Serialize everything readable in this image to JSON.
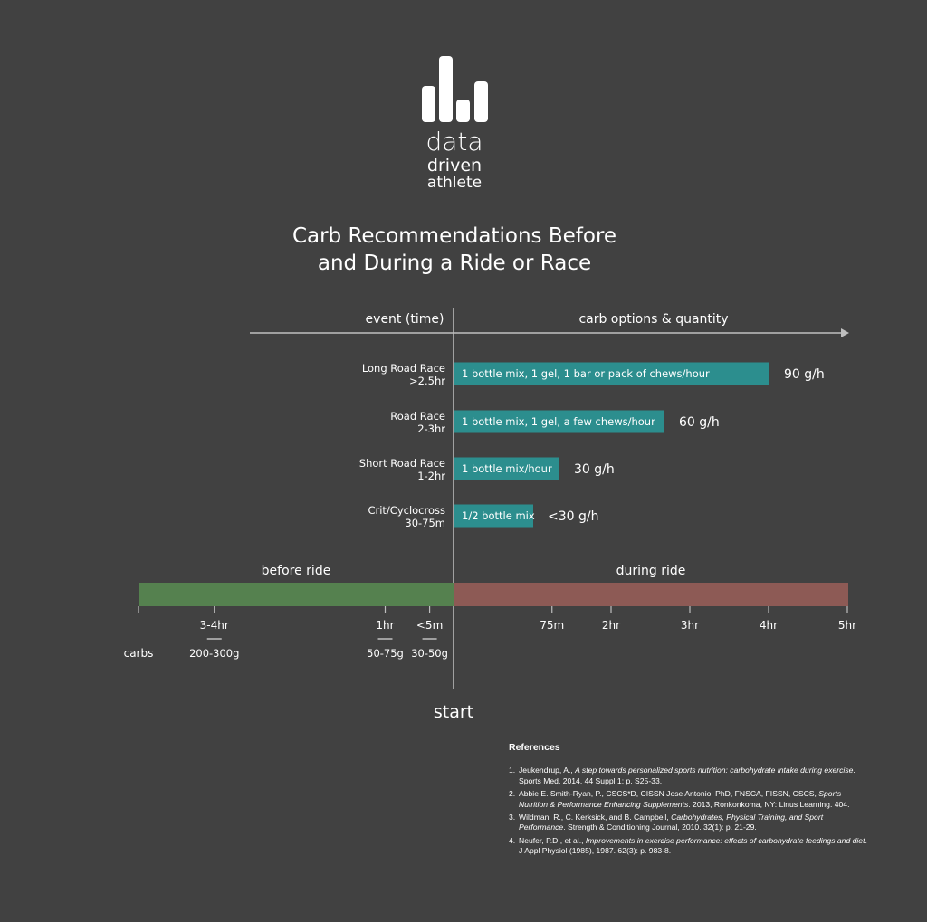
{
  "logo": {
    "lines": [
      "data",
      "driven",
      "athlete"
    ]
  },
  "title": {
    "line1": "Carb Recommendations Before",
    "line2": "and During a Ride or Race"
  },
  "headers": {
    "left": "event (time)",
    "right": "carb options & quantity"
  },
  "chart_data": {
    "type": "bar",
    "orientation": "horizontal",
    "xlabel": "carb options & quantity",
    "ylabel": "event (time)",
    "unit": "g/h",
    "categories": [
      {
        "name": "Long Road Race",
        "duration": ">2.5hr"
      },
      {
        "name": "Road Race",
        "duration": "2-3hr"
      },
      {
        "name": "Short Road Race",
        "duration": "1-2hr"
      },
      {
        "name": "Crit/Cyclocross",
        "duration": "30-75m"
      }
    ],
    "values": [
      90,
      60,
      30,
      22.5
    ],
    "value_labels": [
      "90 g/h",
      "60 g/h",
      "30 g/h",
      "<30 g/h"
    ],
    "bar_texts": [
      "1 bottle mix, 1 gel, 1 bar or pack of chews/hour",
      "1 bottle mix, 1 gel, a few chews/hour",
      "1 bottle mix/hour",
      "1/2 bottle mix"
    ],
    "xlim": [
      0,
      120
    ],
    "bar_color": "#2c8e8e"
  },
  "timeline": {
    "before_label": "before ride",
    "during_label": "during ride",
    "before_color": "#55814f",
    "during_color": "#8d5a55",
    "before_ticks": [
      {
        "label": "3-4hr",
        "carbs": "200-300g",
        "hours_before": 3.5
      },
      {
        "label": "1hr",
        "carbs": "50-75g",
        "hours_before": 1
      },
      {
        "label": "<5m",
        "carbs": "30-50g",
        "hours_before": 0.35
      }
    ],
    "during_ticks": [
      {
        "label": "75m",
        "hours": 1.25
      },
      {
        "label": "2hr",
        "hours": 2
      },
      {
        "label": "3hr",
        "hours": 3
      },
      {
        "label": "4hr",
        "hours": 4
      },
      {
        "label": "5hr",
        "hours": 5
      }
    ],
    "carbs_label": "carbs",
    "start_label": "start"
  },
  "references": {
    "title": "References",
    "items": [
      {
        "num": "1.",
        "authors": "Jeukendrup, A., ",
        "title": "A step towards personalized sports nutrition: carbohydrate intake during exercise",
        "rest": ". Sports Med, 2014. 44 Suppl 1: p. S25-33."
      },
      {
        "num": "2.",
        "authors": "Abbie E. Smith-Ryan, P., CSCS*D, CISSN Jose Antonio, PhD, FNSCA, FISSN, CSCS, ",
        "title": "Sports Nutrition & Performance Enhancing Supplements",
        "rest": ". 2013, Ronkonkoma, NY: Linus Learning. 404."
      },
      {
        "num": "3.",
        "authors": "Wildman, R., C. Kerksick, and B. Campbell, ",
        "title": "Carbohydrates, Physical Training, and Sport Performance",
        "rest": ". Strength & Conditioning Journal, 2010. 32(1): p. 21-29."
      },
      {
        "num": "4.",
        "authors": "Neufer, P.D., et al., ",
        "title": "Improvements in exercise performance: effects of carbohydrate feedings and diet",
        "rest": ". J Appl Physiol (1985), 1987. 62(3): p. 983-8."
      }
    ]
  }
}
